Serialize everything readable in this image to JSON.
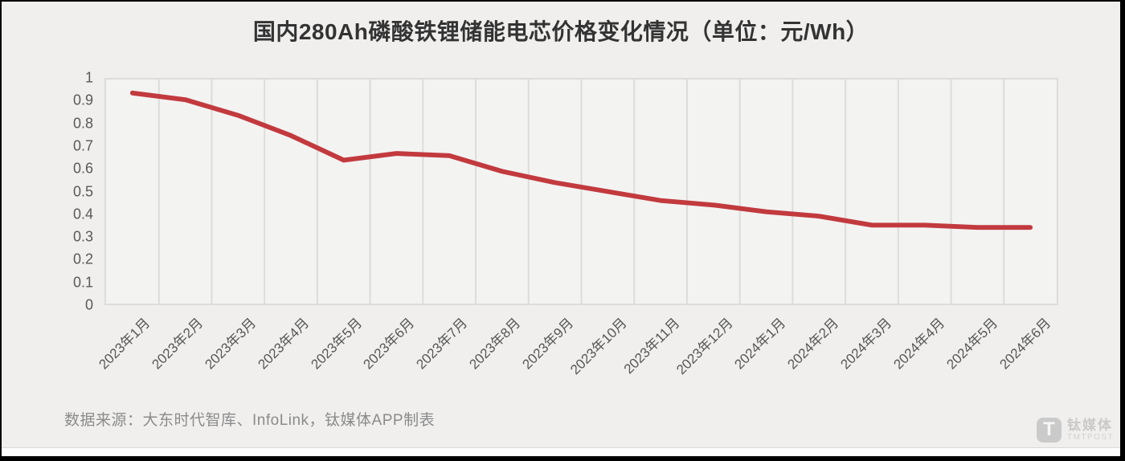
{
  "title": "国内280Ah磷酸铁锂储能电芯价格变化情况（单位：元/Wh）",
  "source_note": "数据来源：大东时代智库、InfoLink，钛媒体APP制表",
  "watermark": {
    "initial": "T",
    "name_cn": "钛媒体",
    "name_en": "TMTPOST"
  },
  "chart_data": {
    "type": "line",
    "title": "国内280Ah磷酸铁锂储能电芯价格变化情况（单位：元/Wh）",
    "categories": [
      "2023年1月",
      "2023年2月",
      "2023年3月",
      "2023年4月",
      "2023年5月",
      "2023年6月",
      "2023年7月",
      "2023年8月",
      "2023年9月",
      "2023年10月",
      "2023年11月",
      "2023年12月",
      "2024年1月",
      "2024年2月",
      "2024年3月",
      "2024年4月",
      "2024年5月",
      "2024年6月"
    ],
    "values": [
      0.94,
      0.91,
      0.84,
      0.75,
      0.64,
      0.67,
      0.66,
      0.59,
      0.54,
      0.5,
      0.46,
      0.44,
      0.41,
      0.39,
      0.35,
      0.35,
      0.34,
      0.34
    ],
    "xlabel": "",
    "ylabel": "",
    "ylim": [
      0,
      1
    ],
    "ytick_labels": [
      "0",
      "0.1",
      "0.2",
      "0.3",
      "0.4",
      "0.5",
      "0.6",
      "0.7",
      "0.8",
      "0.9",
      "1"
    ],
    "grid": "vertical-only",
    "legend": "none",
    "line_color": "#c23a3e",
    "grid_color": "#dcdcda"
  }
}
